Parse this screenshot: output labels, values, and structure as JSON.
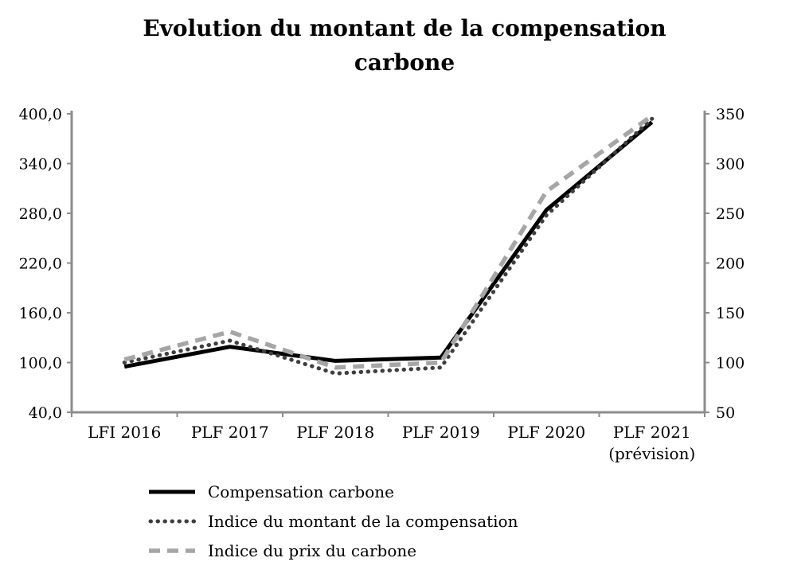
{
  "chart_data": {
    "type": "line",
    "title": "Evolution du montant de la compensation carbone",
    "categories": [
      "LFI 2016",
      "PLF 2017",
      "PLF 2018",
      "PLF 2019",
      "PLF 2020",
      "PLF 2021\n(prévision)"
    ],
    "left_axis": {
      "min": 40,
      "max": 400,
      "tick_values": [
        400,
        340,
        280,
        220,
        160,
        100,
        40
      ],
      "tick_labels": [
        "400,0",
        "340,0",
        "280,0",
        "220,0",
        "160,0",
        "100,0",
        "40,0"
      ]
    },
    "right_axis": {
      "min": 50,
      "max": 350,
      "tick_values": [
        350,
        300,
        250,
        200,
        150,
        100,
        50
      ],
      "tick_labels": [
        "350",
        "300",
        "250",
        "200",
        "150",
        "100",
        "50"
      ]
    },
    "grid": false,
    "legend_position": "bottom-left",
    "axis_color": "#8c8c8c",
    "series": [
      {
        "name": "Compensation carbone",
        "axis": "left",
        "line_style": "solid",
        "color": "#000000",
        "values": [
          95,
          119,
          102,
          106,
          284,
          390
        ]
      },
      {
        "name": "Indice du montant de la compensation",
        "axis": "right",
        "line_style": "dotted",
        "color": "#3f3f3f",
        "values": [
          100,
          122,
          89,
          95,
          248,
          345
        ]
      },
      {
        "name": "Indice du prix du carbone",
        "axis": "right",
        "line_style": "dashed",
        "color": "#a6a6a6",
        "values": [
          103,
          131,
          95,
          100,
          272,
          348
        ]
      }
    ]
  }
}
